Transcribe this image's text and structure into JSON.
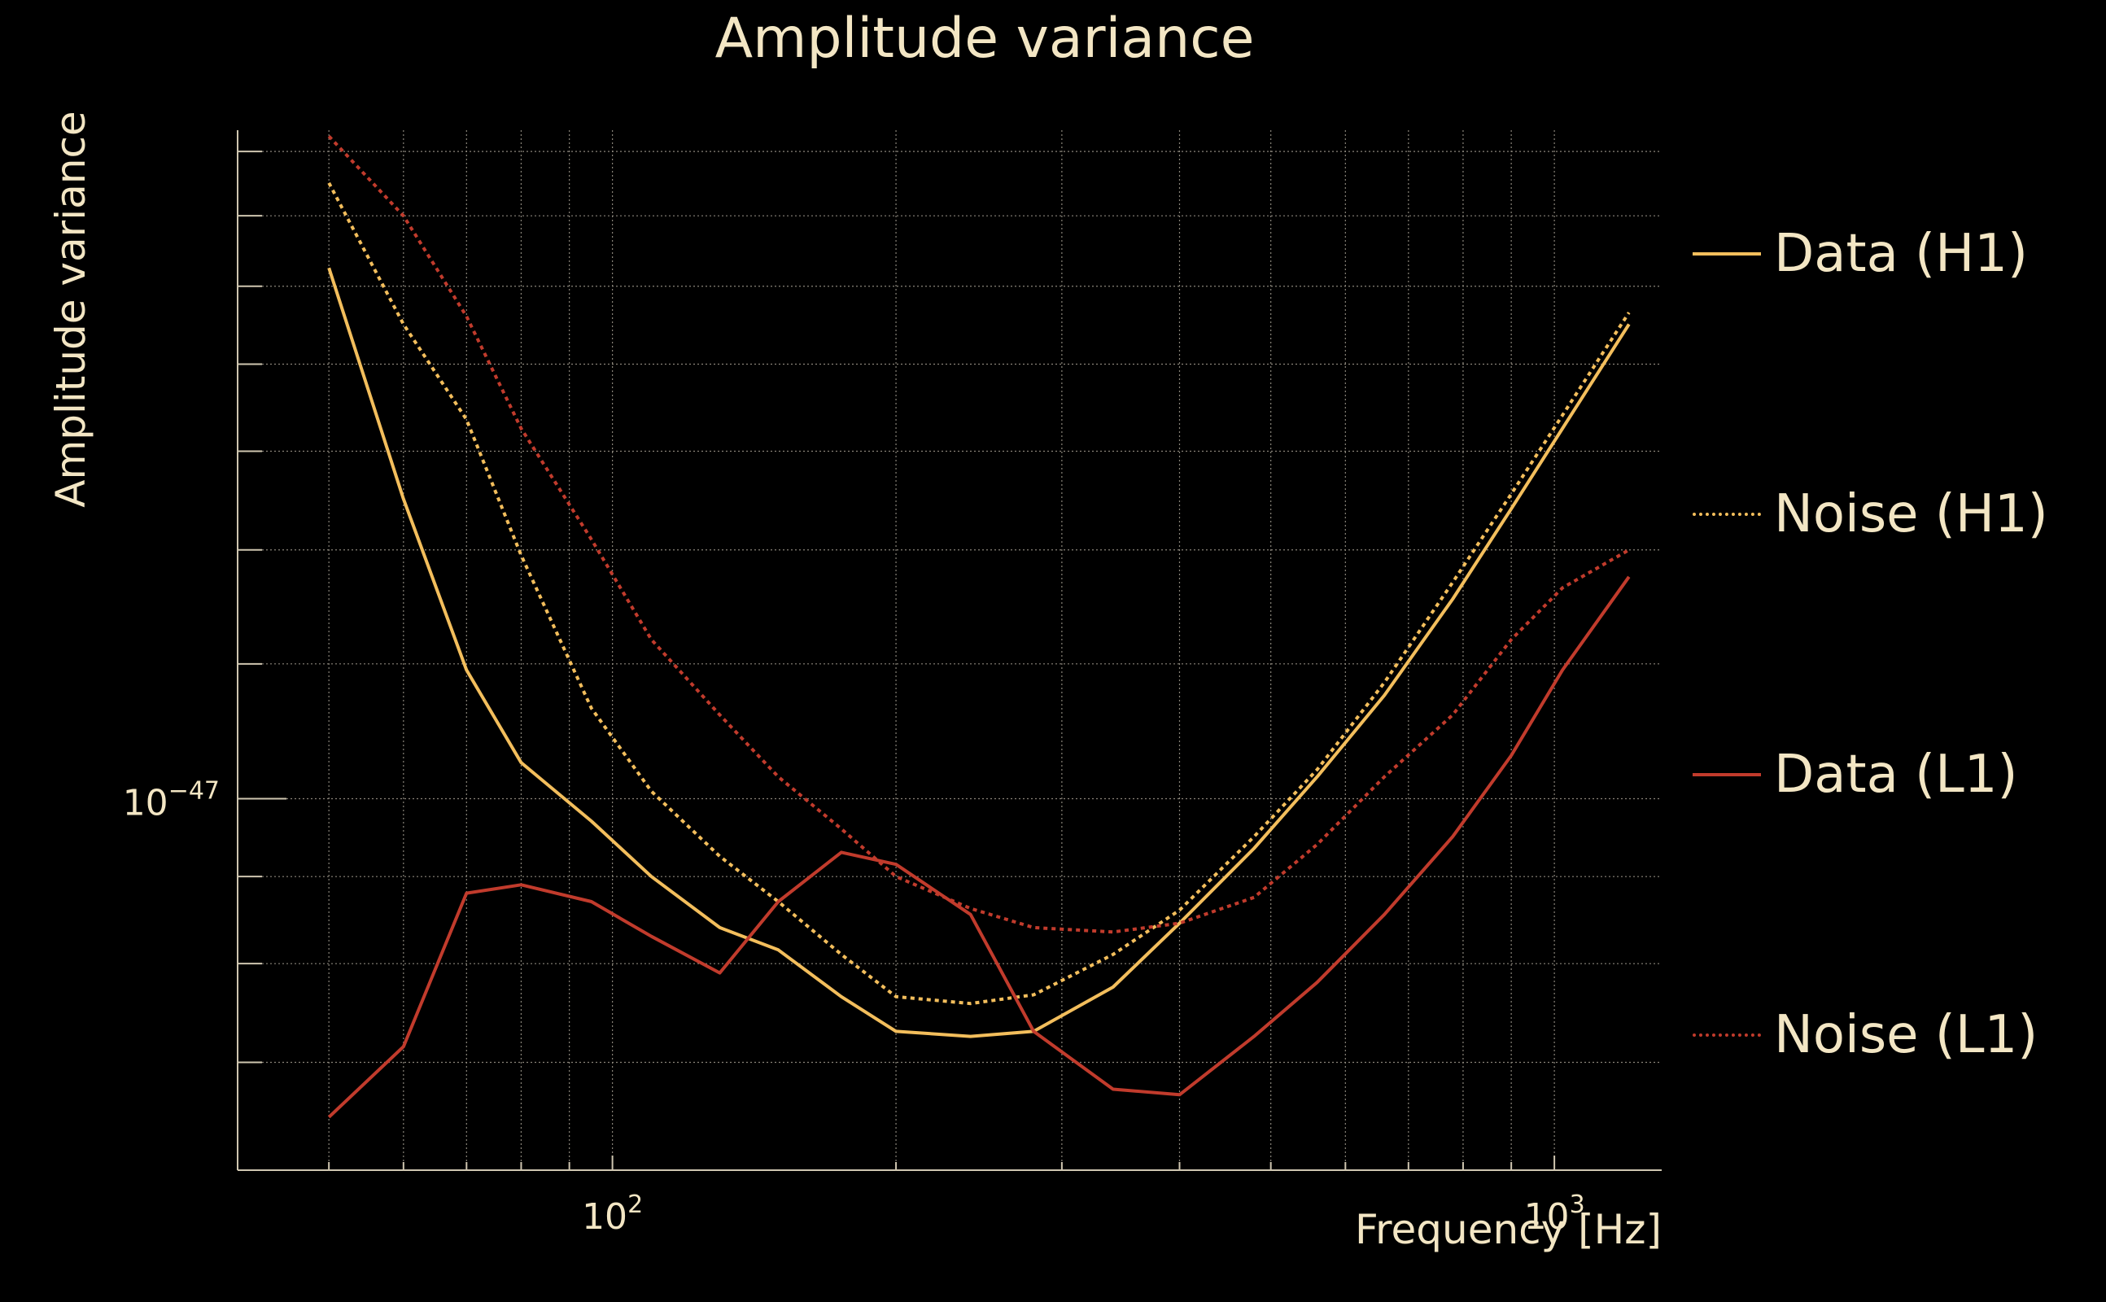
{
  "chart_data": {
    "type": "line",
    "title": "Amplitude variance",
    "xlabel": "Frequency [Hz]",
    "ylabel": "Amplitude variance",
    "x_scale": "log",
    "y_scale": "log",
    "xlim": [
      40,
      1300
    ],
    "ylim": [
      6.05e-48,
      2.47e-47
    ],
    "x_ticks": [
      {
        "value": 100,
        "label": "10",
        "sup": "2"
      },
      {
        "value": 1000,
        "label": "10",
        "sup": "3"
      }
    ],
    "y_ticks": [
      {
        "value": 1e-47,
        "label": "10",
        "sup": "−47"
      }
    ],
    "grid": true,
    "legend_position": "right",
    "x": [
      50,
      60,
      70,
      80,
      95,
      110,
      130,
      150,
      175,
      200,
      240,
      280,
      340,
      400,
      480,
      560,
      660,
      780,
      900,
      1020,
      1200
    ],
    "series": [
      {
        "name": "Data (H1)",
        "color": "#f3be5c",
        "style": "solid",
        "values": [
          2.05e-47,
          1.5e-47,
          1.19e-47,
          1.05e-47,
          9.7e-48,
          9e-48,
          8.4e-48,
          8.15e-48,
          7.65e-48,
          7.3e-48,
          7.25e-48,
          7.3e-48,
          7.75e-48,
          8.45e-48,
          9.35e-48,
          1.03e-47,
          1.15e-47,
          1.31e-47,
          1.48e-47,
          1.65e-47,
          1.9e-47
        ]
      },
      {
        "name": "Noise (H1)",
        "color": "#f3be5c",
        "style": "dotted",
        "values": [
          2.3e-47,
          1.9e-47,
          1.67e-47,
          1.39e-47,
          1.13e-47,
          1.01e-47,
          9.25e-48,
          8.7e-48,
          8.1e-48,
          7.65e-48,
          7.58e-48,
          7.67e-48,
          8.1e-48,
          8.6e-48,
          9.5e-48,
          1.04e-47,
          1.17e-47,
          1.34e-47,
          1.51e-47,
          1.68e-47,
          1.93e-47
        ]
      },
      {
        "name": "Data (L1)",
        "color": "#c13b2c",
        "style": "solid",
        "values": [
          6.5e-48,
          7.15e-48,
          8.8e-48,
          8.9e-48,
          8.7e-48,
          8.3e-48,
          7.9e-48,
          8.7e-48,
          9.3e-48,
          9.15e-48,
          8.55e-48,
          7.3e-48,
          6.75e-48,
          6.7e-48,
          7.25e-48,
          7.8e-48,
          8.55e-48,
          9.5e-48,
          1.06e-47,
          1.19e-47,
          1.35e-47
        ]
      },
      {
        "name": "Noise (L1)",
        "color": "#c13b2c",
        "style": "dotted",
        "values": [
          2.45e-47,
          2.2e-47,
          1.92e-47,
          1.65e-47,
          1.42e-47,
          1.24e-47,
          1.12e-47,
          1.03e-47,
          9.6e-48,
          9e-48,
          8.62e-48,
          8.4e-48,
          8.35e-48,
          8.45e-48,
          8.75e-48,
          9.4e-48,
          1.03e-47,
          1.12e-47,
          1.24e-47,
          1.33e-47,
          1.4e-47
        ]
      }
    ]
  },
  "colors": {
    "background": "#000000",
    "text": "#f3e6c4",
    "grid": "#8a857a",
    "axis": "#cfc6b0"
  }
}
